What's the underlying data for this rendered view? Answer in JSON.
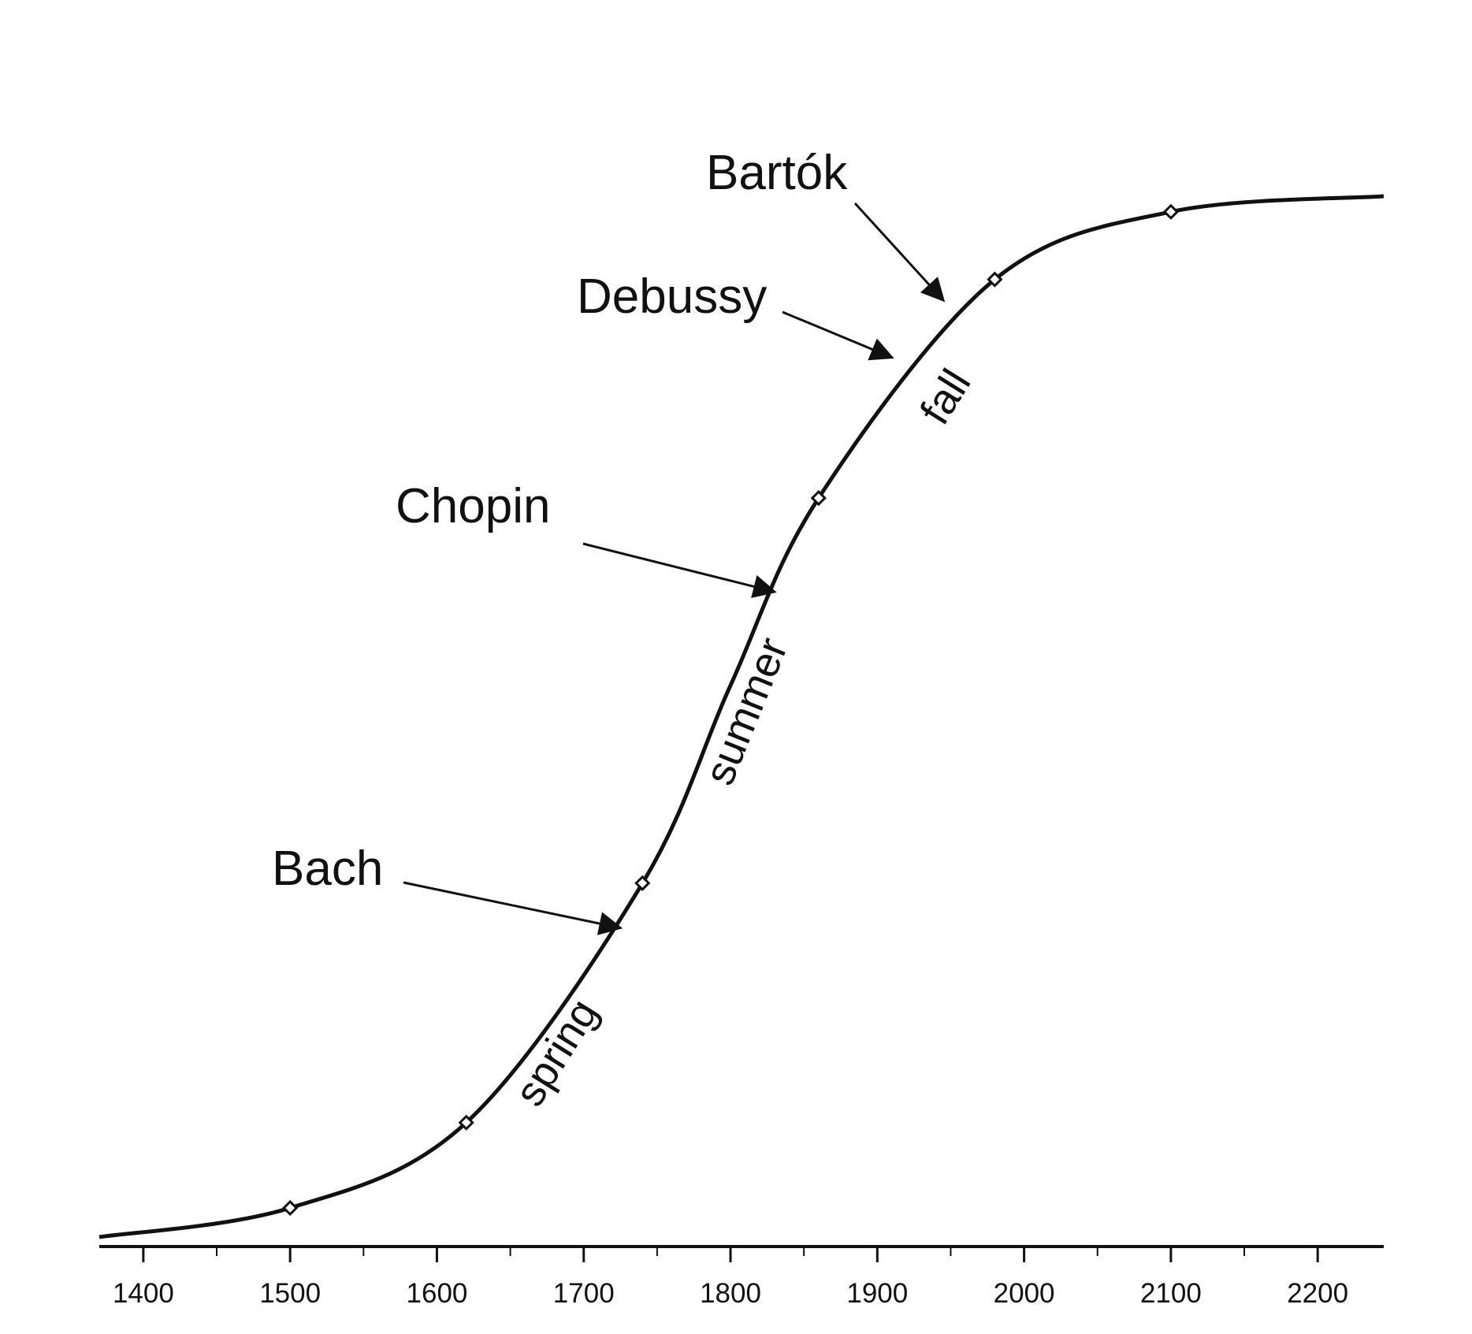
{
  "chart_data": {
    "type": "line",
    "title": "",
    "xlabel": "",
    "ylabel": "",
    "xlim": [
      1370,
      2245
    ],
    "ylim": [
      0,
      1
    ],
    "x_ticks": [
      1400,
      1500,
      1600,
      1700,
      1800,
      1900,
      2000,
      2100,
      2200
    ],
    "x_tick_labels": [
      "1400",
      "1500",
      "1600",
      "1700",
      "1800",
      "1900",
      "2000",
      "2100",
      "2200"
    ],
    "x_minor_ticks": [
      1450,
      1550,
      1650,
      1750,
      1850,
      1950,
      2050,
      2150
    ],
    "grid": false,
    "y_axis_visible": false,
    "curve": {
      "shape": "logistic S-curve",
      "midpoint_year": 1800,
      "color": "#111111",
      "points": [
        {
          "x": 1370,
          "y": 0.0
        },
        {
          "x": 1500,
          "y": 0.028
        },
        {
          "x": 1620,
          "y": 0.11
        },
        {
          "x": 1740,
          "y": 0.34
        },
        {
          "x": 1800,
          "y": 0.53
        },
        {
          "x": 1860,
          "y": 0.71
        },
        {
          "x": 1980,
          "y": 0.92
        },
        {
          "x": 2100,
          "y": 0.985
        },
        {
          "x": 2245,
          "y": 1.0
        }
      ]
    },
    "markers": [
      {
        "x": 1500,
        "y": 0.028
      },
      {
        "x": 1620,
        "y": 0.11
      },
      {
        "x": 1740,
        "y": 0.34
      },
      {
        "x": 1860,
        "y": 0.71
      },
      {
        "x": 1980,
        "y": 0.92
      },
      {
        "x": 2100,
        "y": 0.985
      }
    ],
    "annotations": [
      {
        "label": "Bach",
        "x": 1725,
        "y": 0.297
      },
      {
        "label": "Chopin",
        "x": 1830,
        "y": 0.62
      },
      {
        "label": "Debussy",
        "x": 1910,
        "y": 0.845
      },
      {
        "label": "Bartók",
        "x": 1945,
        "y": 0.9
      }
    ],
    "seasons": [
      {
        "label": "spring",
        "x": 1680,
        "y": 0.17
      },
      {
        "label": "summer",
        "x": 1810,
        "y": 0.5
      },
      {
        "label": "fall",
        "x": 1945,
        "y": 0.8
      }
    ]
  }
}
